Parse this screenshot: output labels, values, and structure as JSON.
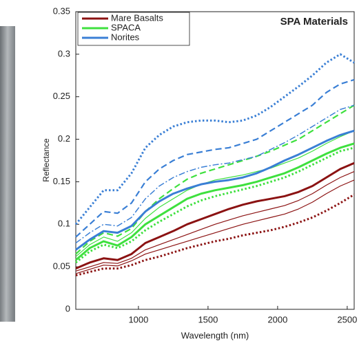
{
  "chart_data": {
    "type": "line",
    "title": "SPA Materials",
    "xlabel": "Wavelength (nm)",
    "ylabel": "Reflectance",
    "x": [
      550,
      650,
      750,
      850,
      950,
      1050,
      1150,
      1250,
      1350,
      1450,
      1550,
      1650,
      1750,
      1850,
      1950,
      2050,
      2150,
      2250,
      2350,
      2450,
      2550
    ],
    "xlim": [
      550,
      2550
    ],
    "xticks": [
      1000,
      1500,
      2000,
      2500
    ],
    "ylim": [
      0,
      0.35
    ],
    "yticks": [
      0,
      0.05,
      0.1,
      0.15,
      0.2,
      0.25,
      0.3,
      0.35
    ],
    "legend": "upper left",
    "series": [
      {
        "name": "Mare Basalts",
        "color": "#8b1212",
        "lines": [
          {
            "style": "solid-thick",
            "values": [
              0.048,
              0.055,
              0.06,
              0.058,
              0.065,
              0.078,
              0.085,
              0.092,
              0.1,
              0.106,
              0.112,
              0.118,
              0.123,
              0.127,
              0.13,
              0.133,
              0.138,
              0.145,
              0.155,
              0.165,
              0.172
            ]
          },
          {
            "style": "thin",
            "values": [
              0.045,
              0.05,
              0.055,
              0.054,
              0.06,
              0.07,
              0.076,
              0.082,
              0.088,
              0.094,
              0.1,
              0.105,
              0.11,
              0.114,
              0.118,
              0.122,
              0.128,
              0.136,
              0.146,
              0.155,
              0.162
            ]
          },
          {
            "style": "thin",
            "values": [
              0.042,
              0.047,
              0.052,
              0.051,
              0.057,
              0.065,
              0.07,
              0.075,
              0.08,
              0.085,
              0.09,
              0.095,
              0.1,
              0.104,
              0.108,
              0.112,
              0.118,
              0.126,
              0.136,
              0.145,
              0.152
            ]
          },
          {
            "style": "dotted",
            "values": [
              0.04,
              0.044,
              0.048,
              0.048,
              0.052,
              0.058,
              0.062,
              0.067,
              0.072,
              0.076,
              0.08,
              0.083,
              0.087,
              0.09,
              0.093,
              0.097,
              0.102,
              0.108,
              0.116,
              0.125,
              0.135
            ]
          }
        ]
      },
      {
        "name": "SPACA",
        "color": "#3ee03e",
        "lines": [
          {
            "style": "solid-thick",
            "values": [
              0.058,
              0.072,
              0.08,
              0.075,
              0.085,
              0.1,
              0.11,
              0.12,
              0.13,
              0.136,
              0.14,
              0.143,
              0.146,
              0.15,
              0.155,
              0.16,
              0.167,
              0.175,
              0.183,
              0.19,
              0.195
            ]
          },
          {
            "style": "thin",
            "values": [
              0.062,
              0.076,
              0.085,
              0.08,
              0.09,
              0.107,
              0.12,
              0.13,
              0.14,
              0.147,
              0.152,
              0.155,
              0.158,
              0.162,
              0.166,
              0.172,
              0.178,
              0.186,
              0.195,
              0.203,
              0.21
            ]
          },
          {
            "style": "dashed",
            "values": [
              0.065,
              0.08,
              0.09,
              0.086,
              0.095,
              0.115,
              0.13,
              0.142,
              0.153,
              0.16,
              0.165,
              0.17,
              0.175,
              0.18,
              0.186,
              0.193,
              0.2,
              0.21,
              0.22,
              0.23,
              0.24
            ]
          },
          {
            "style": "dotted",
            "values": [
              0.055,
              0.068,
              0.076,
              0.072,
              0.08,
              0.093,
              0.103,
              0.112,
              0.121,
              0.128,
              0.133,
              0.137,
              0.141,
              0.145,
              0.15,
              0.155,
              0.162,
              0.17,
              0.178,
              0.186,
              0.19
            ]
          }
        ]
      },
      {
        "name": "Norites",
        "color": "#3a7fd5",
        "lines": [
          {
            "style": "dotted",
            "values": [
              0.1,
              0.12,
              0.14,
              0.14,
              0.16,
              0.19,
              0.205,
              0.215,
              0.22,
              0.222,
              0.222,
              0.22,
              0.222,
              0.228,
              0.238,
              0.25,
              0.262,
              0.275,
              0.29,
              0.3,
              0.29
            ]
          },
          {
            "style": "dashed",
            "values": [
              0.085,
              0.1,
              0.115,
              0.113,
              0.125,
              0.15,
              0.165,
              0.175,
              0.182,
              0.185,
              0.188,
              0.19,
              0.195,
              0.2,
              0.21,
              0.22,
              0.23,
              0.24,
              0.255,
              0.265,
              0.27
            ]
          },
          {
            "style": "dashdot",
            "values": [
              0.078,
              0.09,
              0.1,
              0.098,
              0.108,
              0.13,
              0.145,
              0.155,
              0.162,
              0.167,
              0.17,
              0.172,
              0.176,
              0.18,
              0.188,
              0.196,
              0.205,
              0.215,
              0.225,
              0.235,
              0.24
            ]
          },
          {
            "style": "solid-thick",
            "values": [
              0.07,
              0.082,
              0.092,
              0.09,
              0.098,
              0.115,
              0.127,
              0.136,
              0.142,
              0.147,
              0.15,
              0.152,
              0.155,
              0.16,
              0.167,
              0.175,
              0.182,
              0.19,
              0.198,
              0.205,
              0.21
            ]
          }
        ]
      }
    ]
  }
}
